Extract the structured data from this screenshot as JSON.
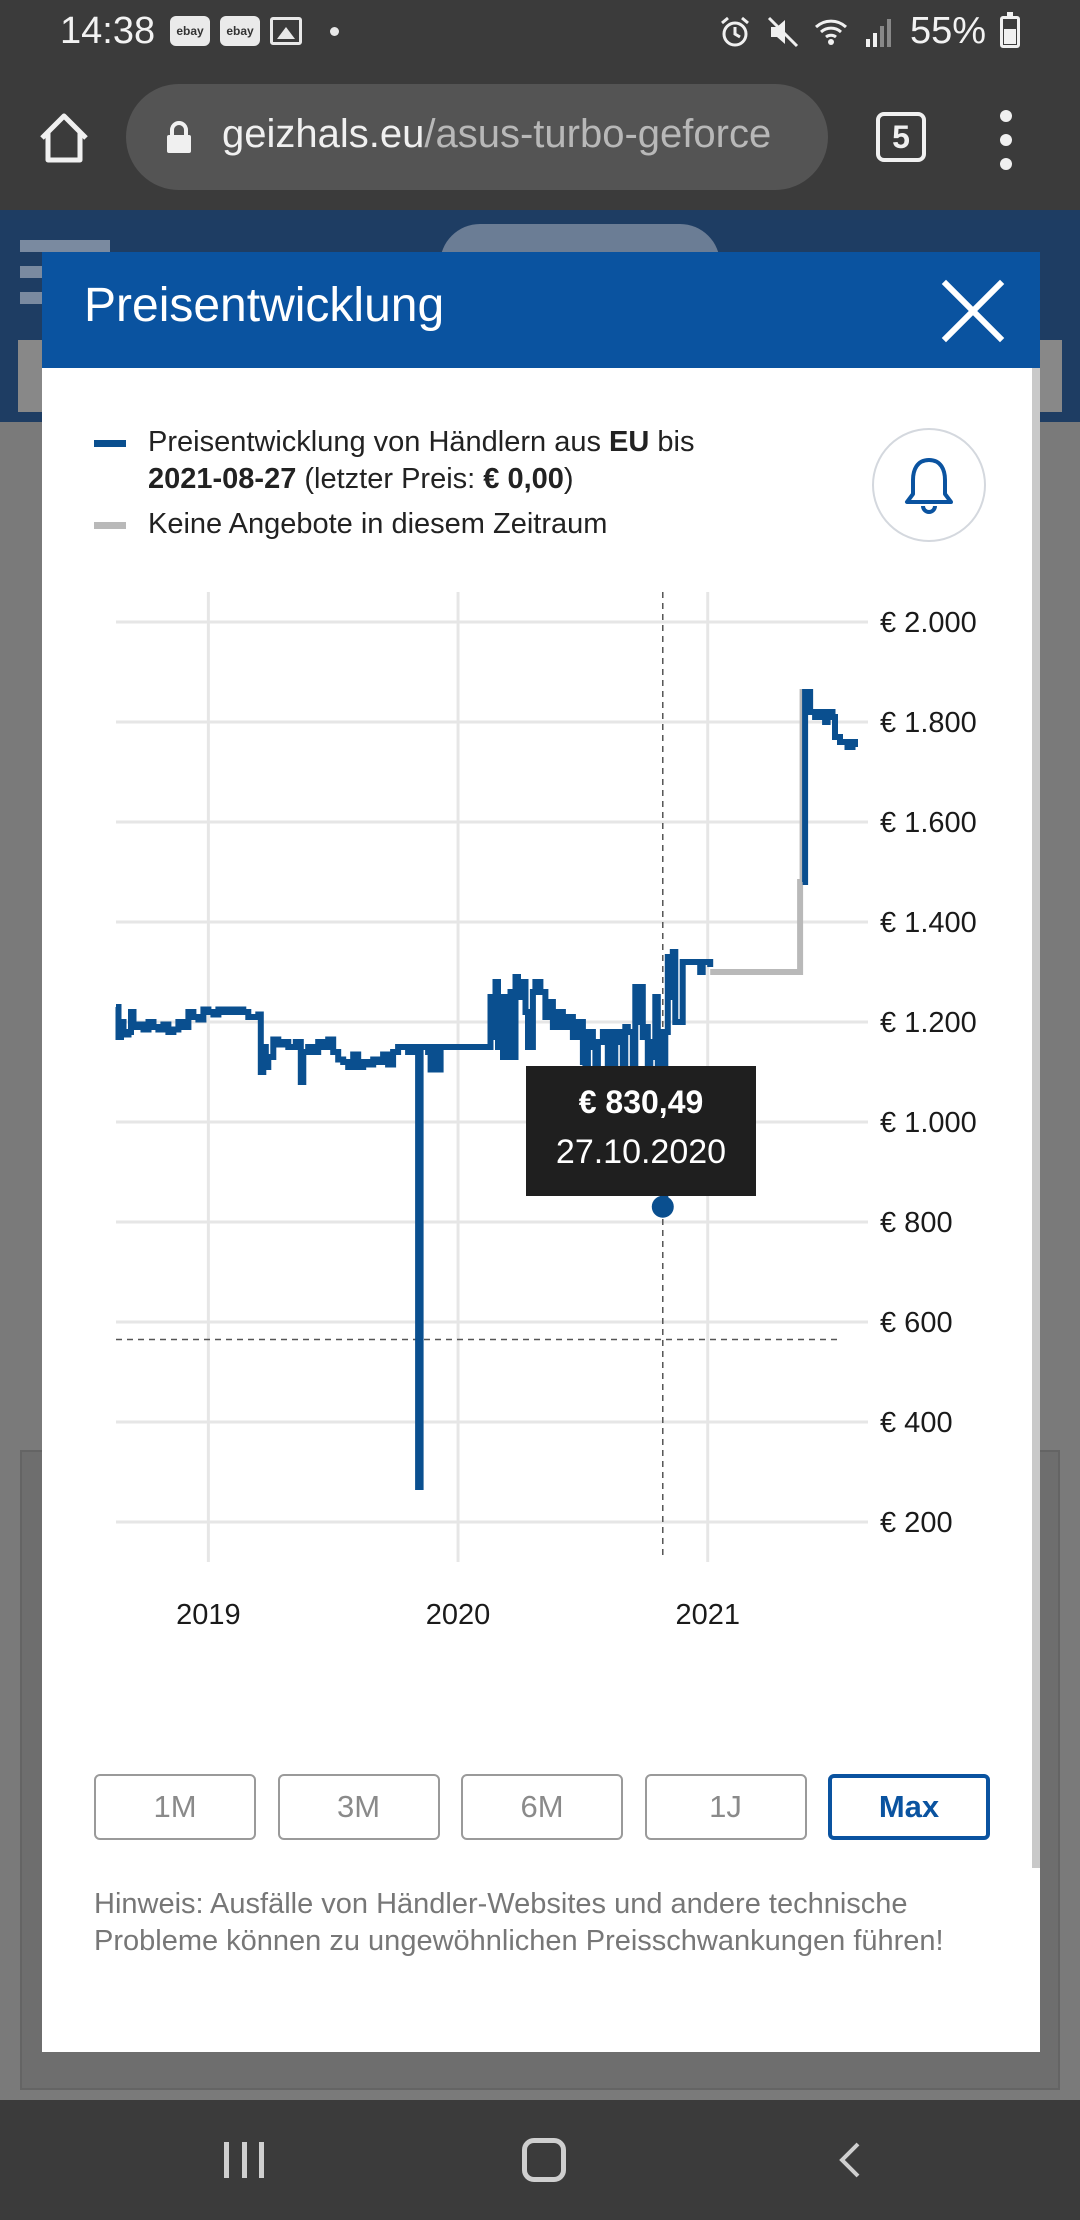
{
  "status_bar": {
    "time": "14:38",
    "battery": "55%",
    "notification_icons": [
      "ebay-icon",
      "ebay-icon",
      "image-icon",
      "dot-icon"
    ],
    "system_icons": [
      "alarm-icon",
      "mute-icon",
      "wifi-icon",
      "signal-icon",
      "battery-icon"
    ]
  },
  "browser": {
    "url_domain": "geizhals.eu",
    "url_path": "/asus-turbo-geforce",
    "tab_count": "5"
  },
  "modal": {
    "title": "Preisentwicklung",
    "legend": {
      "line1_prefix": "Preisentwicklung von Händlern aus ",
      "line1_region": "EU",
      "line1_suffix": " bis",
      "line2_date": "2021-08-27",
      "line2_mid": " (letzter Preis: ",
      "line2_price": "€ 0,00",
      "line2_end": ")",
      "grey_label": "Keine Angebote in diesem Zeitraum"
    },
    "tooltip": {
      "price": "€ 830,49",
      "date": "27.10.2020"
    },
    "range_buttons": [
      "1M",
      "3M",
      "6M",
      "1J",
      "Max"
    ],
    "active_range": "Max",
    "hint": "Hinweis: Ausfälle von Händler-Websites und andere technische Probleme können zu ungewöhnlichen Preisschwankungen führen!"
  },
  "colors": {
    "header_blue": "#0a53a0",
    "series_blue": "#0a4f8f",
    "no_offer_grey": "#b9b9b9",
    "tooltip_bg": "#1f1f1f"
  },
  "chart_data": {
    "type": "line",
    "y_tick_labels": [
      "€ 2.000",
      "€ 1.800",
      "€ 1.600",
      "€ 1.400",
      "€ 1.200",
      "€ 1.000",
      "€ 800",
      "€ 600",
      "€ 400",
      "€ 200"
    ],
    "y_ticks": [
      2000,
      1800,
      1600,
      1400,
      1200,
      1000,
      800,
      600,
      400,
      200
    ],
    "x_tick_labels": [
      "2019",
      "2020",
      "2021"
    ],
    "x_ticks": [
      2019.0,
      2020.0,
      2021.0
    ],
    "xlim": [
      2018.63,
      2021.65
    ],
    "ylim": [
      140,
      2060
    ],
    "grid": true,
    "reference_line_y": 565,
    "highlight": {
      "x": 2020.82,
      "y": 830.49,
      "label_price": "€ 830,49",
      "label_date": "27.10.2020"
    },
    "series": [
      {
        "name": "Preisentwicklung von Händlern aus EU",
        "color": "#0a4f8f",
        "points": [
          [
            2018.63,
            1230
          ],
          [
            2018.64,
            1170
          ],
          [
            2018.65,
            1200
          ],
          [
            2018.66,
            1175
          ],
          [
            2018.68,
            1180
          ],
          [
            2018.69,
            1220
          ],
          [
            2018.7,
            1190
          ],
          [
            2018.72,
            1195
          ],
          [
            2018.74,
            1185
          ],
          [
            2018.76,
            1200
          ],
          [
            2018.78,
            1190
          ],
          [
            2018.8,
            1185
          ],
          [
            2018.82,
            1195
          ],
          [
            2018.84,
            1180
          ],
          [
            2018.86,
            1185
          ],
          [
            2018.88,
            1200
          ],
          [
            2018.9,
            1190
          ],
          [
            2018.92,
            1220
          ],
          [
            2018.94,
            1210
          ],
          [
            2018.96,
            1205
          ],
          [
            2018.98,
            1225
          ],
          [
            2019.0,
            1220
          ],
          [
            2019.02,
            1215
          ],
          [
            2019.04,
            1225
          ],
          [
            2019.06,
            1220
          ],
          [
            2019.08,
            1225
          ],
          [
            2019.1,
            1220
          ],
          [
            2019.12,
            1225
          ],
          [
            2019.14,
            1220
          ],
          [
            2019.16,
            1210
          ],
          [
            2019.2,
            1215
          ],
          [
            2019.21,
            1100
          ],
          [
            2019.22,
            1150
          ],
          [
            2019.23,
            1110
          ],
          [
            2019.24,
            1130
          ],
          [
            2019.26,
            1165
          ],
          [
            2019.28,
            1155
          ],
          [
            2019.3,
            1160
          ],
          [
            2019.32,
            1150
          ],
          [
            2019.35,
            1160
          ],
          [
            2019.37,
            1080
          ],
          [
            2019.38,
            1140
          ],
          [
            2019.4,
            1150
          ],
          [
            2019.42,
            1140
          ],
          [
            2019.44,
            1160
          ],
          [
            2019.46,
            1150
          ],
          [
            2019.48,
            1165
          ],
          [
            2019.5,
            1140
          ],
          [
            2019.52,
            1125
          ],
          [
            2019.54,
            1120
          ],
          [
            2019.56,
            1110
          ],
          [
            2019.58,
            1135
          ],
          [
            2019.6,
            1110
          ],
          [
            2019.62,
            1120
          ],
          [
            2019.64,
            1115
          ],
          [
            2019.66,
            1125
          ],
          [
            2019.68,
            1120
          ],
          [
            2019.7,
            1135
          ],
          [
            2019.72,
            1115
          ],
          [
            2019.74,
            1140
          ],
          [
            2019.76,
            1150
          ],
          [
            2019.78,
            1150
          ],
          [
            2019.8,
            1140
          ],
          [
            2019.82,
            1150
          ],
          [
            2019.83,
            1150
          ],
          [
            2019.84,
            270
          ],
          [
            2019.85,
            1150
          ],
          [
            2019.87,
            1150
          ],
          [
            2019.88,
            1140
          ],
          [
            2019.89,
            1105
          ],
          [
            2019.9,
            1150
          ],
          [
            2019.92,
            1105
          ],
          [
            2019.93,
            1150
          ],
          [
            2019.96,
            1150
          ],
          [
            2019.99,
            1150
          ],
          [
            2020.02,
            1150
          ],
          [
            2020.05,
            1150
          ],
          [
            2020.08,
            1150
          ],
          [
            2020.1,
            1150
          ],
          [
            2020.12,
            1150
          ],
          [
            2020.13,
            1250
          ],
          [
            2020.14,
            1170
          ],
          [
            2020.15,
            1280
          ],
          [
            2020.16,
            1150
          ],
          [
            2020.17,
            1250
          ],
          [
            2020.18,
            1130
          ],
          [
            2020.2,
            1250
          ],
          [
            2020.21,
            1260
          ],
          [
            2020.22,
            1130
          ],
          [
            2020.23,
            1290
          ],
          [
            2020.24,
            1250
          ],
          [
            2020.26,
            1280
          ],
          [
            2020.27,
            1220
          ],
          [
            2020.28,
            1150
          ],
          [
            2020.3,
            1260
          ],
          [
            2020.31,
            1280
          ],
          [
            2020.33,
            1260
          ],
          [
            2020.35,
            1210
          ],
          [
            2020.37,
            1240
          ],
          [
            2020.38,
            1190
          ],
          [
            2020.4,
            1220
          ],
          [
            2020.42,
            1190
          ],
          [
            2020.44,
            1210
          ],
          [
            2020.46,
            1170
          ],
          [
            2020.48,
            1200
          ],
          [
            2020.5,
            1120
          ],
          [
            2020.51,
            1000
          ],
          [
            2020.52,
            1180
          ],
          [
            2020.54,
            1150
          ],
          [
            2020.55,
            990
          ],
          [
            2020.56,
            1160
          ],
          [
            2020.58,
            1180
          ],
          [
            2020.6,
            1000
          ],
          [
            2020.61,
            1180
          ],
          [
            2020.62,
            1040
          ],
          [
            2020.63,
            1160
          ],
          [
            2020.64,
            1180
          ],
          [
            2020.66,
            1000
          ],
          [
            2020.67,
            1190
          ],
          [
            2020.68,
            1180
          ],
          [
            2020.7,
            1000
          ],
          [
            2020.71,
            1270
          ],
          [
            2020.72,
            1200
          ],
          [
            2020.73,
            1270
          ],
          [
            2020.74,
            1170
          ],
          [
            2020.75,
            1190
          ],
          [
            2020.76,
            1050
          ],
          [
            2020.77,
            1130
          ],
          [
            2020.78,
            1160
          ],
          [
            2020.79,
            1250
          ],
          [
            2020.8,
            900
          ],
          [
            2020.81,
            1180
          ],
          [
            2020.82,
            830.49
          ],
          [
            2020.83,
            1180
          ],
          [
            2020.84,
            1330
          ],
          [
            2020.85,
            1250
          ],
          [
            2020.86,
            1340
          ],
          [
            2020.87,
            1200
          ],
          [
            2020.89,
            1200
          ],
          [
            2020.9,
            1320
          ],
          [
            2020.93,
            1320
          ],
          [
            2020.96,
            1320
          ],
          [
            2020.97,
            1300
          ],
          [
            2020.98,
            1320
          ],
          [
            2021.0,
            1320
          ],
          [
            2021.01,
            1310
          ]
        ]
      },
      {
        "name": "Keine Angebote in diesem Zeitraum",
        "color": "#b9b9b9",
        "points": [
          [
            2021.01,
            1300
          ],
          [
            2021.36,
            1300
          ],
          [
            2021.37,
            1480
          ],
          [
            2021.38,
            1860
          ],
          [
            2021.4,
            1860
          ],
          [
            2021.41,
            1820
          ]
        ]
      },
      {
        "name": "Preisentwicklung von Händlern aus EU",
        "color": "#0a4f8f",
        "points": [
          [
            2021.38,
            1480
          ],
          [
            2021.39,
            1860
          ],
          [
            2021.4,
            1860
          ],
          [
            2021.41,
            1820
          ],
          [
            2021.43,
            1810
          ],
          [
            2021.45,
            1820
          ],
          [
            2021.47,
            1800
          ],
          [
            2021.48,
            1820
          ],
          [
            2021.5,
            1810
          ],
          [
            2021.51,
            1770
          ],
          [
            2021.53,
            1760
          ],
          [
            2021.55,
            1760
          ],
          [
            2021.56,
            1750
          ],
          [
            2021.58,
            1760
          ],
          [
            2021.59,
            1750
          ]
        ]
      }
    ]
  }
}
